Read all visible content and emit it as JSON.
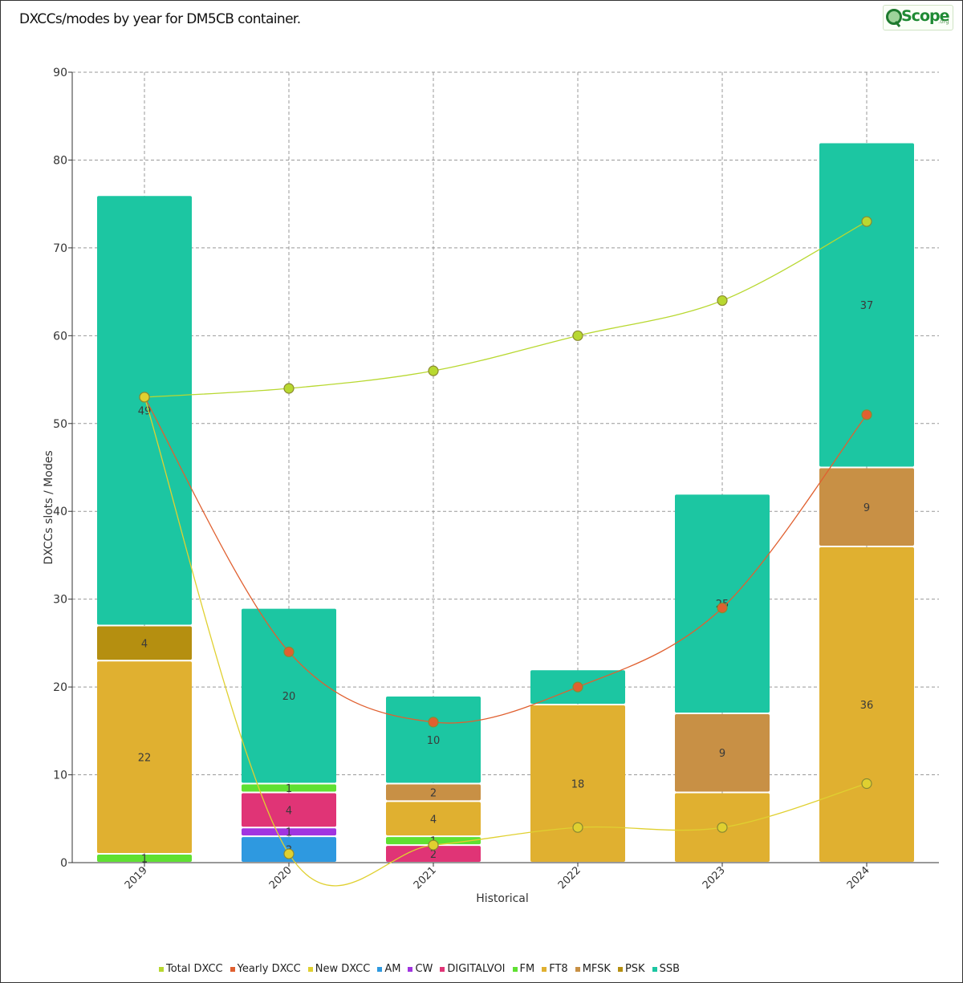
{
  "title": "DXCCs/modes by year for DM5CB container.",
  "logo": {
    "text": "Scope",
    "suffix": ".org"
  },
  "chart_data": {
    "type": "bar",
    "stacked": true,
    "categories": [
      "2019",
      "2020",
      "2021",
      "2022",
      "2023",
      "2024"
    ],
    "xlabel": "Historical",
    "ylabel": "DXCCs slots / Modes",
    "ylim": [
      0,
      90
    ],
    "yticks": [
      "0",
      "10",
      "20",
      "30",
      "40",
      "50",
      "60",
      "70",
      "80",
      "90"
    ],
    "grid": true,
    "legend_position": "bottom",
    "series": [
      {
        "name": "AM",
        "kind": "bar",
        "color": "#2e99e0",
        "values": [
          0,
          3,
          0,
          0,
          0,
          0
        ],
        "labels": [
          "",
          "3",
          "",
          "",
          "",
          ""
        ]
      },
      {
        "name": "CW",
        "kind": "bar",
        "color": "#a134e0",
        "values": [
          0,
          1,
          0,
          0,
          0,
          0
        ],
        "labels": [
          "",
          "1",
          "",
          "",
          "",
          ""
        ]
      },
      {
        "name": "DIGITALVOI",
        "kind": "bar",
        "color": "#e03476",
        "values": [
          0,
          4,
          2,
          0,
          0,
          0
        ],
        "labels": [
          "",
          "4",
          "2",
          "",
          "",
          ""
        ]
      },
      {
        "name": "FM",
        "kind": "bar",
        "color": "#5fe032",
        "values": [
          1,
          1,
          1,
          0,
          0,
          0
        ],
        "labels": [
          "1",
          "1",
          "1",
          "",
          "",
          ""
        ]
      },
      {
        "name": "FT8",
        "kind": "bar",
        "color": "#e0b030",
        "values": [
          22,
          0,
          4,
          18,
          8,
          36
        ],
        "labels": [
          "22",
          "",
          "4",
          "18",
          "8",
          "36"
        ]
      },
      {
        "name": "MFSK",
        "kind": "bar",
        "color": "#c89045",
        "values": [
          0,
          0,
          2,
          0,
          9,
          9
        ],
        "labels": [
          "",
          "",
          "2",
          "",
          "9",
          "9"
        ]
      },
      {
        "name": "PSK",
        "kind": "bar",
        "color": "#b58f10",
        "values": [
          4,
          0,
          0,
          0,
          0,
          0
        ],
        "labels": [
          "4",
          "",
          "",
          "",
          "",
          ""
        ]
      },
      {
        "name": "SSB",
        "kind": "bar",
        "color": "#1cc6a2",
        "values": [
          49,
          20,
          10,
          4,
          25,
          37
        ],
        "labels": [
          "49",
          "20",
          "10",
          "4",
          "25",
          "37"
        ]
      },
      {
        "name": "Total DXCC",
        "kind": "line",
        "color": "#b8d830",
        "values": [
          53,
          54,
          56,
          60,
          64,
          73
        ]
      },
      {
        "name": "Yearly DXCC",
        "kind": "line",
        "color": "#e06030",
        "values": [
          53,
          24,
          16,
          20,
          29,
          51
        ]
      },
      {
        "name": "New DXCC",
        "kind": "line",
        "color": "#e0d030",
        "values": [
          53,
          1,
          2,
          4,
          4,
          9
        ]
      }
    ]
  }
}
